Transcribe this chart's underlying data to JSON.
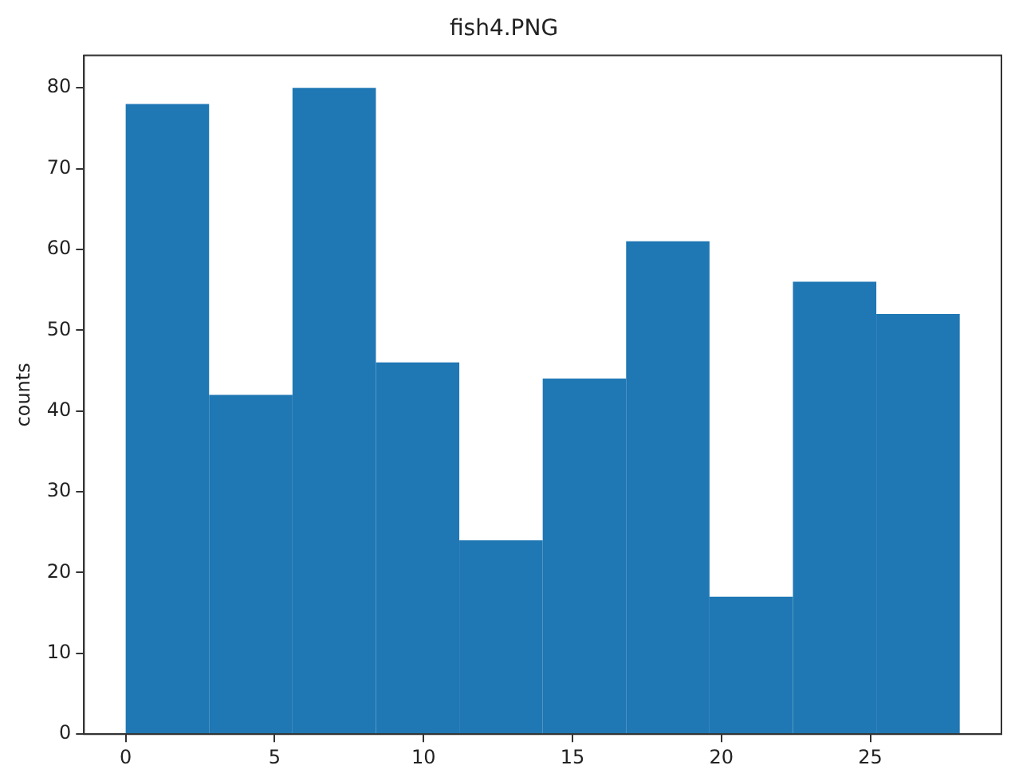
{
  "chart_data": {
    "type": "histogram",
    "title": "fish4.PNG",
    "ylabel": "counts",
    "bins": [
      0,
      2.8,
      5.6,
      8.4,
      11.2,
      14,
      16.8,
      19.6,
      22.4,
      25.2,
      28
    ],
    "values": [
      78,
      42,
      80,
      46,
      24,
      44,
      61,
      17,
      56,
      52
    ],
    "color": "#1f77b4",
    "xlim": [
      -1.4,
      29.4
    ],
    "xticks": [
      0,
      5,
      10,
      15,
      20,
      25
    ],
    "ylim": [
      0,
      84
    ],
    "yticks": [
      0,
      10,
      20,
      30,
      40,
      50,
      60,
      70,
      80
    ],
    "grid": false,
    "legend": false
  }
}
